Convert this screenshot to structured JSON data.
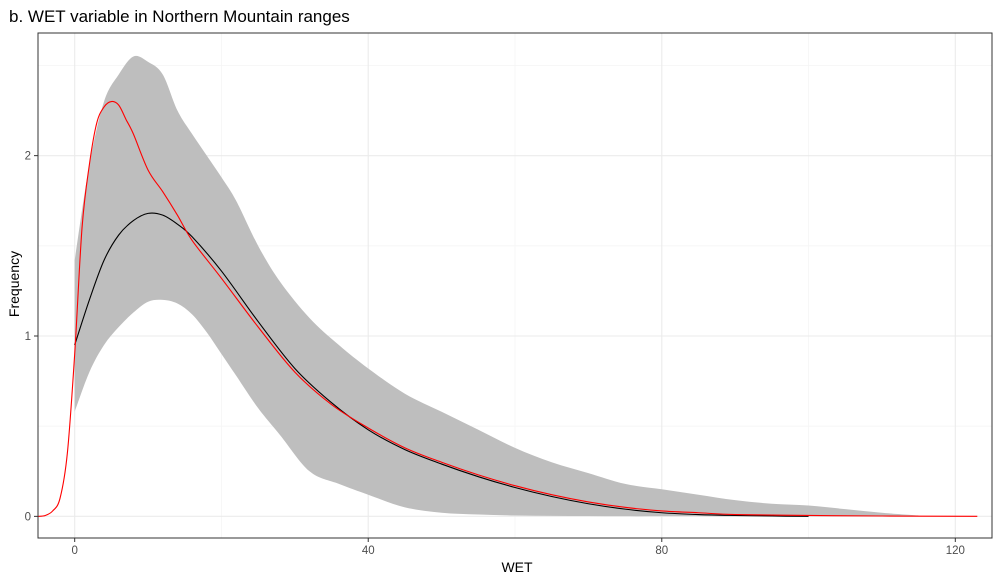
{
  "chart_data": {
    "type": "line",
    "title": "b. WET variable in Northern Mountain ranges",
    "xlabel": "WET",
    "ylabel": "Frequency",
    "xlim": [
      -5,
      125
    ],
    "ylim": [
      -0.12,
      2.68
    ],
    "x_ticks": [
      0,
      40,
      80,
      120
    ],
    "y_ticks": [
      0,
      1,
      2
    ],
    "x_minor": [
      20,
      60,
      100
    ],
    "y_minor": [
      0.5,
      1.5,
      2.5
    ],
    "grid": true,
    "legend": "none",
    "colors": {
      "band": "#bebebe",
      "mean_line": "#000000",
      "observed_line": "#ff0000",
      "panel_border": "#333333",
      "grid_major": "#ebebeb",
      "grid_minor": "#f5f5f5"
    },
    "band": {
      "x": [
        0,
        2,
        4,
        6,
        8,
        10,
        12,
        14,
        16,
        18,
        20,
        22,
        25,
        28,
        32,
        36,
        40,
        45,
        50,
        55,
        60,
        65,
        70,
        75,
        80,
        85,
        90,
        95,
        100,
        105,
        110,
        115
      ],
      "lower": [
        0.58,
        0.8,
        0.95,
        1.05,
        1.13,
        1.19,
        1.2,
        1.18,
        1.12,
        1.02,
        0.9,
        0.78,
        0.6,
        0.45,
        0.25,
        0.18,
        0.12,
        0.05,
        0.02,
        0.01,
        0.005,
        0.003,
        0.002,
        0.001,
        0.001,
        0.001,
        0.0,
        0.0,
        0.0,
        0.0,
        0.0,
        0.0
      ],
      "upper": [
        1.42,
        1.95,
        2.3,
        2.45,
        2.55,
        2.52,
        2.45,
        2.25,
        2.12,
        2.0,
        1.88,
        1.75,
        1.5,
        1.3,
        1.1,
        0.95,
        0.82,
        0.68,
        0.58,
        0.48,
        0.38,
        0.3,
        0.24,
        0.18,
        0.15,
        0.12,
        0.09,
        0.07,
        0.06,
        0.04,
        0.02,
        0.005
      ]
    },
    "series": [
      {
        "x": [
          0,
          2,
          4,
          6,
          8,
          10,
          12,
          14,
          16,
          20,
          25,
          30,
          35,
          40,
          45,
          50,
          55,
          60,
          65,
          70,
          75,
          80,
          85,
          90,
          95,
          100
        ],
        "y": [
          0.95,
          1.2,
          1.42,
          1.56,
          1.64,
          1.68,
          1.67,
          1.62,
          1.55,
          1.36,
          1.08,
          0.82,
          0.63,
          0.48,
          0.37,
          0.29,
          0.22,
          0.16,
          0.11,
          0.07,
          0.04,
          0.02,
          0.01,
          0.005,
          0.002,
          0.0
        ]
      },
      {
        "x": [
          -5,
          -4,
          -3,
          -2,
          -1,
          0,
          1,
          2,
          3,
          4,
          5,
          6,
          7,
          8,
          10,
          12,
          14,
          16,
          20,
          25,
          30,
          35,
          40,
          45,
          50,
          55,
          60,
          65,
          70,
          75,
          80,
          85,
          90,
          100,
          110,
          123
        ],
        "y": [
          0.0,
          0.005,
          0.03,
          0.1,
          0.35,
          0.9,
          1.6,
          1.95,
          2.18,
          2.27,
          2.3,
          2.28,
          2.2,
          2.12,
          1.92,
          1.8,
          1.67,
          1.53,
          1.32,
          1.05,
          0.8,
          0.62,
          0.49,
          0.38,
          0.3,
          0.23,
          0.17,
          0.12,
          0.08,
          0.05,
          0.03,
          0.02,
          0.01,
          0.005,
          0.002,
          0.0
        ]
      }
    ]
  }
}
